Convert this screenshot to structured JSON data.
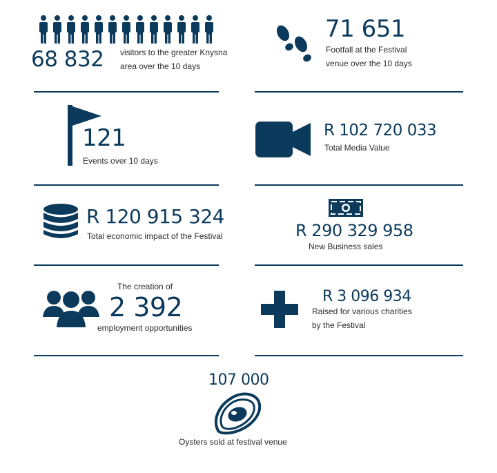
{
  "stats": {
    "visitors": {
      "value": "68 832",
      "label_line1": "visitors to the greater Knysna",
      "label_line2": "area over the 10 days"
    },
    "footfall": {
      "value": "71 651",
      "label_line1": "Footfall at the Festival",
      "label_line2": "venue over the 10 days"
    },
    "events": {
      "value": "121",
      "label": "Events over 10 days"
    },
    "media": {
      "value": "R 102 720 033",
      "label": "Total Media Value"
    },
    "economic": {
      "value": "R 120 915 324",
      "label": "Total economic impact of the Festival"
    },
    "sales": {
      "value": "R 290 329 958",
      "label": "New Business sales"
    },
    "employment": {
      "prefix": "The creation of",
      "value": "2 392",
      "label": "employment opportunities"
    },
    "charities": {
      "value": "R 3 096 934",
      "label_line1": "Raised for various charities",
      "label_line2": "by the Festival"
    },
    "oysters": {
      "value": "107 000",
      "label": "Oysters sold at festival venue"
    }
  },
  "icons": {
    "visitors": "people-row-icon",
    "footfall": "footprints-icon",
    "events": "flag-icon",
    "media": "video-camera-icon",
    "economic": "database-icon",
    "sales": "banknote-icon",
    "employment": "group-icon",
    "charities": "plus-icon",
    "oysters": "oyster-icon"
  },
  "colors": {
    "primary": "#0b3a5c",
    "text": "#2b2b2b",
    "background": "#ffffff"
  }
}
